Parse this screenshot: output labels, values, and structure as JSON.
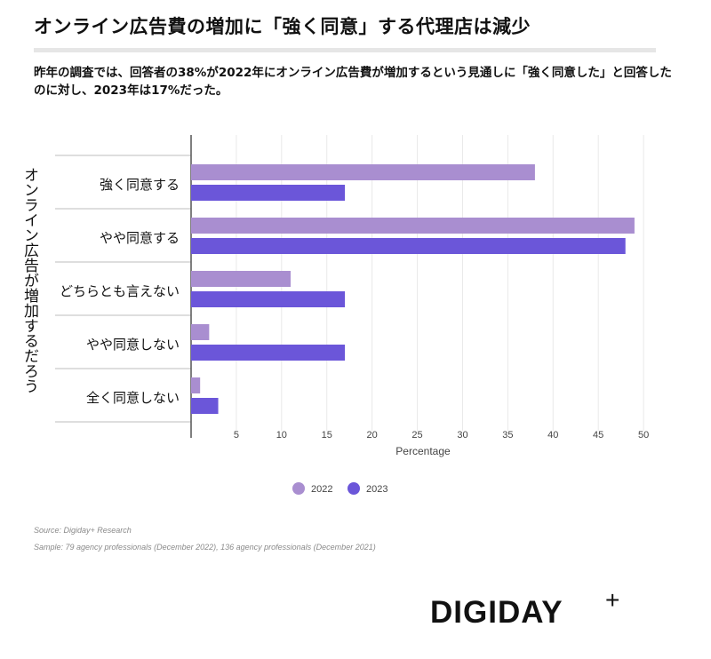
{
  "title": "オンライン広告費の増加に「強く同意」する代理店は減少",
  "subtitle": "昨年の調査では、回答者の38%が2022年にオンライン広告費が増加するという見通しに「強く同意した」と回答したのに対し、2023年は17%だった。",
  "chart_data": {
    "type": "bar",
    "orientation": "horizontal",
    "categories": [
      "強く同意する",
      "やや同意する",
      "どちらとも言えない",
      "やや同意しない",
      "全く同意しない"
    ],
    "series": [
      {
        "name": "2022",
        "color": "#a98ed0",
        "values": [
          38,
          49,
          11,
          2,
          1
        ]
      },
      {
        "name": "2023",
        "color": "#6b56d9",
        "values": [
          17,
          48,
          17,
          17,
          3
        ]
      }
    ],
    "xlabel": "Percentage",
    "ylabel": "オンライン広告が増加するだろう",
    "xticks": [
      5,
      10,
      15,
      20,
      25,
      30,
      35,
      40,
      45,
      50
    ],
    "xlim": [
      0,
      50
    ],
    "legend_position": "bottom"
  },
  "footer": {
    "source": "Source: Digiday+ Research",
    "sample": "Sample: 79 agency professionals (December 2022), 136 agency professionals (December 2021)"
  },
  "brand": {
    "logo_text": "DIGIDAY",
    "logo_plus": "+"
  }
}
